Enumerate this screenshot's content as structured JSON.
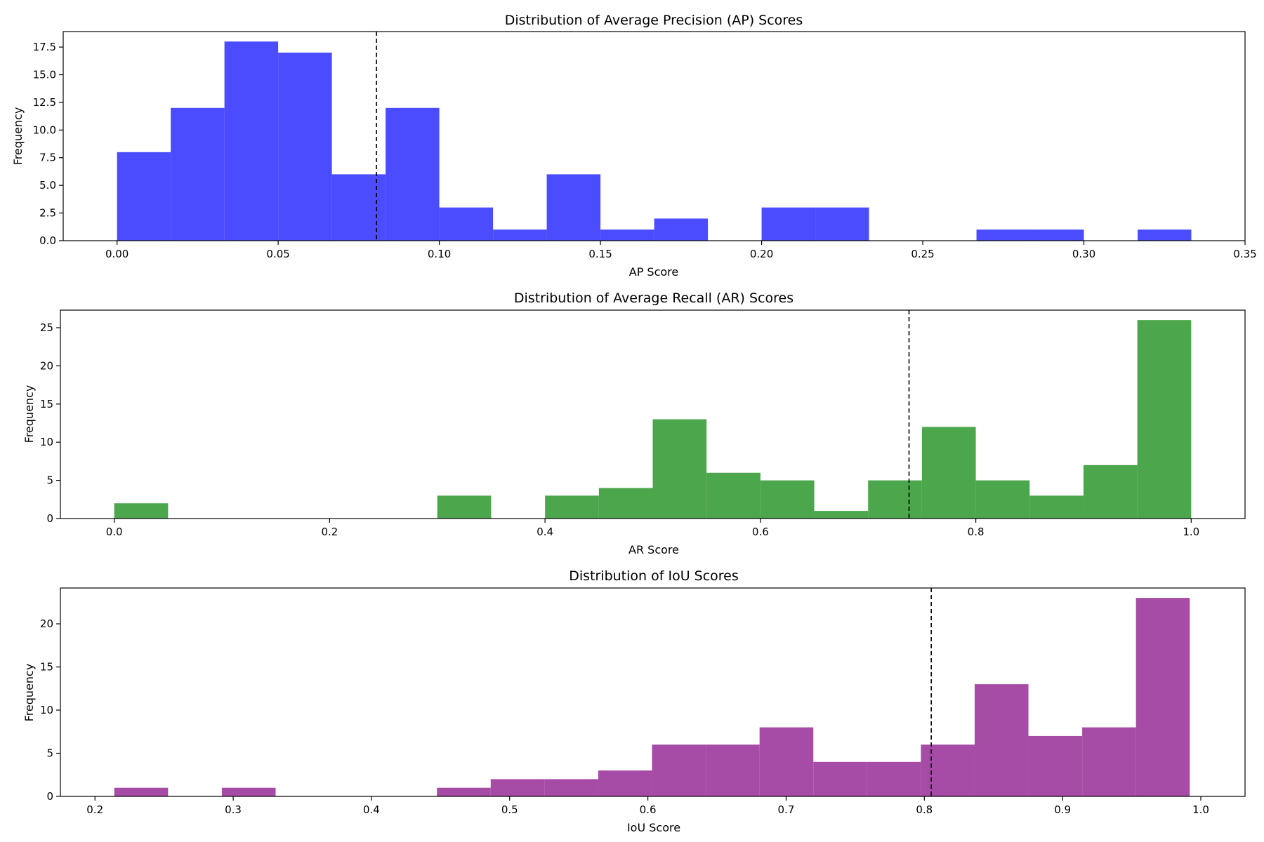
{
  "chart_data": [
    {
      "type": "bar",
      "title": "Distribution of Average Precision (AP) Scores",
      "xlabel": "AP Score",
      "ylabel": "Frequency",
      "color": "#4c4cff",
      "xlim": [
        -0.0167,
        0.35
      ],
      "ylim": [
        0,
        18.9
      ],
      "xticks": [
        0.0,
        0.05,
        0.1,
        0.15,
        0.2,
        0.25,
        0.3,
        0.35
      ],
      "xtick_labels": [
        "0.00",
        "0.05",
        "0.10",
        "0.15",
        "0.20",
        "0.25",
        "0.30",
        "0.35"
      ],
      "yticks": [
        0,
        2.5,
        5,
        7.5,
        10,
        12.5,
        15,
        17.5
      ],
      "ytick_labels": [
        "0.0",
        "2.5",
        "5.0",
        "7.5",
        "10.0",
        "12.5",
        "15.0",
        "17.5"
      ],
      "bin_edges": [
        0.0,
        0.01667,
        0.03333,
        0.05,
        0.06667,
        0.08333,
        0.1,
        0.11667,
        0.13333,
        0.15,
        0.16667,
        0.18333,
        0.2,
        0.21667,
        0.23333,
        0.25,
        0.26667,
        0.28333,
        0.3,
        0.31667,
        0.33333
      ],
      "counts": [
        8,
        12,
        18,
        17,
        6,
        12,
        3,
        1,
        6,
        1,
        2,
        0,
        3,
        3,
        0,
        0,
        1,
        1,
        0,
        1
      ],
      "mean_line": 0.0805
    },
    {
      "type": "bar",
      "title": "Distribution of Average Recall (AR) Scores",
      "xlabel": "AR Score",
      "ylabel": "Frequency",
      "color": "#4ca64c",
      "xlim": [
        -0.05,
        1.05
      ],
      "ylim": [
        0,
        27.3
      ],
      "xticks": [
        0.0,
        0.2,
        0.4,
        0.6,
        0.8,
        1.0
      ],
      "xtick_labels": [
        "0.0",
        "0.2",
        "0.4",
        "0.6",
        "0.8",
        "1.0"
      ],
      "yticks": [
        0,
        5,
        10,
        15,
        20,
        25
      ],
      "ytick_labels": [
        "0",
        "5",
        "10",
        "15",
        "20",
        "25"
      ],
      "bin_edges": [
        0.0,
        0.05,
        0.1,
        0.15,
        0.2,
        0.25,
        0.3,
        0.35,
        0.4,
        0.45,
        0.5,
        0.55,
        0.6,
        0.65,
        0.7,
        0.75,
        0.8,
        0.85,
        0.9,
        0.95,
        1.0
      ],
      "counts": [
        2,
        0,
        0,
        0,
        0,
        0,
        3,
        0,
        3,
        4,
        13,
        6,
        5,
        1,
        5,
        12,
        5,
        3,
        7,
        26
      ],
      "mean_line": 0.738
    },
    {
      "type": "bar",
      "title": "Distribution of IoU Scores",
      "xlabel": "IoU Score",
      "ylabel": "Frequency",
      "color": "#a64ca6",
      "xlim": [
        0.175,
        1.032
      ],
      "ylim": [
        0,
        24.15
      ],
      "xticks": [
        0.2,
        0.3,
        0.4,
        0.5,
        0.6,
        0.7,
        0.8,
        0.9,
        1.0
      ],
      "xtick_labels": [
        "0.2",
        "0.3",
        "0.4",
        "0.5",
        "0.6",
        "0.7",
        "0.8",
        "0.9",
        "1.0"
      ],
      "yticks": [
        0,
        5,
        10,
        15,
        20
      ],
      "ytick_labels": [
        "0",
        "5",
        "10",
        "15",
        "20"
      ],
      "bin_edges": [
        0.214,
        0.2529,
        0.2918,
        0.3307,
        0.3696,
        0.4085,
        0.4474,
        0.4863,
        0.5252,
        0.5641,
        0.603,
        0.6419,
        0.6808,
        0.7197,
        0.7586,
        0.7975,
        0.8364,
        0.8753,
        0.9142,
        0.9531,
        0.992
      ],
      "counts": [
        1,
        0,
        1,
        0,
        0,
        0,
        1,
        2,
        2,
        3,
        6,
        6,
        8,
        4,
        4,
        6,
        13,
        7,
        8,
        23
      ],
      "mean_line": 0.805
    }
  ]
}
